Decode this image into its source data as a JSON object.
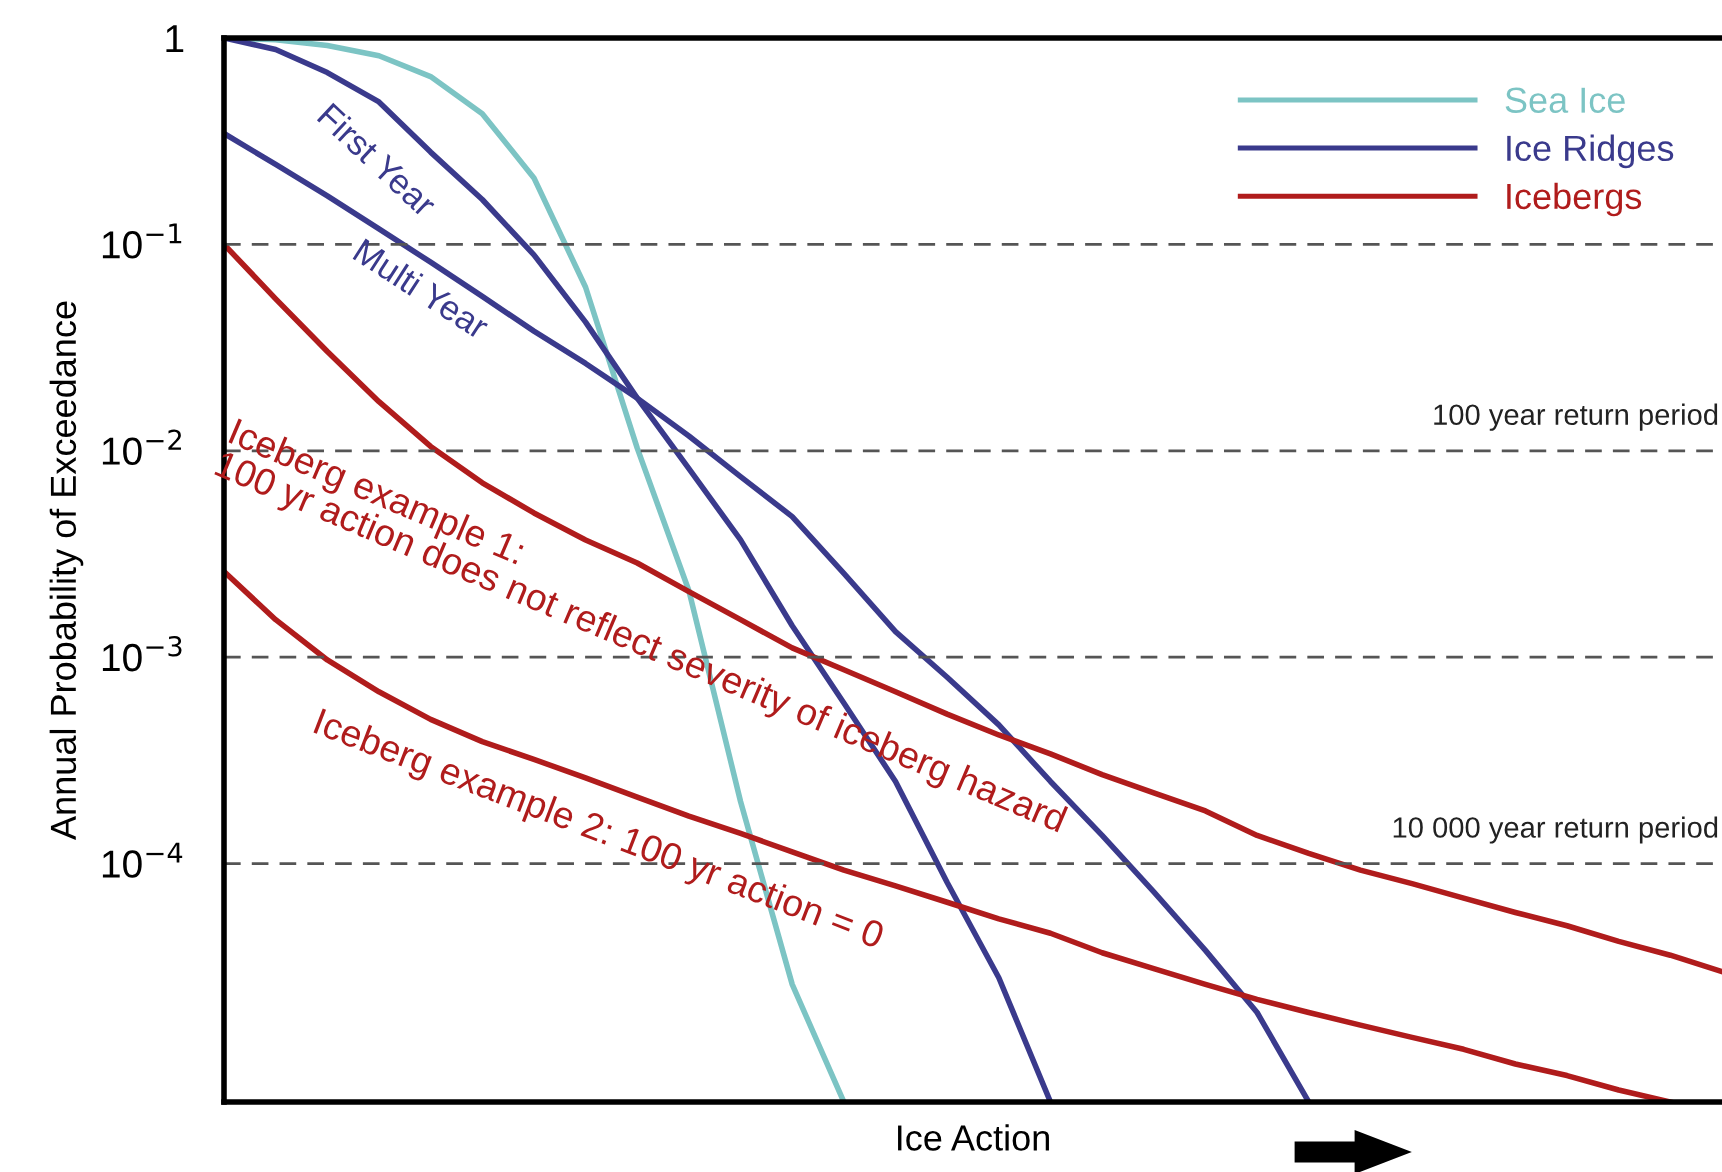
{
  "chart_data": {
    "type": "line",
    "xlabel": "Ice Action",
    "ylabel": "Annual Probability of Exceedance",
    "log": "y",
    "legend": "top right",
    "grid": false,
    "categories": [
      null,
      null,
      null,
      null,
      null,
      null,
      null,
      null,
      null,
      null,
      null,
      null,
      null,
      null,
      null,
      null,
      null,
      null,
      null,
      null,
      null,
      null,
      null,
      null,
      null,
      null,
      null,
      null,
      null,
      null
    ],
    "ylim": [
      7e-06,
      1
    ],
    "yticks": [
      1,
      {
        "value": 0.1,
        "label": "10$^{−1}$"
      },
      {
        "value": 0.01,
        "label": "10$^{−2}$"
      },
      {
        "value": 0.001,
        "label": "10$^{−3}$"
      },
      {
        "value": 0.0001,
        "label": "10$^{−4}$"
      }
    ],
    "series": [
      {
        "name": "Sea Ice",
        "color": "#7cc4c4",
        "values": [
          1,
          0.98,
          0.92,
          0.82,
          0.65,
          0.43,
          0.21,
          0.062,
          0.0103,
          0.0021,
          0.0002,
          2.6e-05,
          7e-06,
          null,
          null,
          null,
          null,
          null,
          null,
          null,
          null,
          null,
          null,
          null,
          null,
          null,
          null,
          null,
          null,
          null
        ]
      },
      {
        "name": "Ice Ridges",
        "color": "#3a3a8c",
        "values": [
          1,
          0.88,
          0.68,
          0.49,
          0.28,
          0.165,
          0.089,
          0.042,
          0.018,
          0.0082,
          0.0037,
          0.00142,
          0.0006,
          0.00025,
          8.1e-05,
          2.8e-05,
          7e-06,
          null,
          null,
          null,
          null,
          null,
          null,
          null,
          null,
          null,
          null,
          null,
          null,
          null
        ]
      },
      {
        "color": "#3a3a8c",
        "values": [
          0.345,
          0.244,
          0.172,
          0.119,
          0.082,
          0.056,
          0.038,
          0.0265,
          0.018,
          0.0118,
          0.0075,
          0.0048,
          0.00255,
          0.00133,
          0.0008,
          0.00047,
          0.00025,
          0.000137,
          7.3e-05,
          3.8e-05,
          1.9e-05,
          7e-06,
          null,
          null,
          null,
          null,
          null,
          null,
          null,
          null
        ]
      },
      {
        "name": "Icebergs",
        "color": "#b01c1c",
        "values": [
          0.1,
          0.0545,
          0.0303,
          0.0173,
          0.0105,
          0.007,
          0.005,
          0.0037,
          0.00286,
          0.00208,
          0.00152,
          0.00111,
          0.00087,
          0.00068,
          0.00053,
          0.00042,
          0.00034,
          0.00027,
          0.00022,
          0.00018,
          0.000137,
          0.000112,
          9.3e-05,
          8e-05,
          6.8e-05,
          5.8e-05,
          5e-05,
          4.2e-05,
          3.6e-05,
          3e-05
        ]
      },
      {
        "color": "#b01c1c",
        "values": [
          0.0026,
          0.00152,
          0.00097,
          0.00068,
          0.0005,
          0.00039,
          0.00032,
          0.00026,
          0.00021,
          0.00017,
          0.00014,
          0.000114,
          9.3e-05,
          7.8e-05,
          6.5e-05,
          5.4e-05,
          4.6e-05,
          3.7e-05,
          3.1e-05,
          2.6e-05,
          2.2e-05,
          1.9e-05,
          1.65e-05,
          1.44e-05,
          1.26e-05,
          1.07e-05,
          9.4e-06,
          8e-06,
          7e-06,
          null
        ]
      }
    ],
    "ref_lines": [
      {
        "axis": "y",
        "value": 0.1,
        "color": "#555555",
        "line_style": "dashed"
      },
      {
        "axis": "y",
        "value": 0.01,
        "label": "100 year return period",
        "color": "#555555",
        "line_style": "dashed"
      },
      {
        "axis": "y",
        "value": 0.001,
        "color": "#555555",
        "line_style": "dashed"
      },
      {
        "axis": "y",
        "value": 0.0001,
        "label": "10 000 year return period",
        "color": "#555555",
        "line_style": "dashed"
      }
    ],
    "annotations": [
      "First Year",
      "Multi Year",
      "Iceberg example 1:\n100 yr action does not reflect severity of iceberg hazard",
      "Iceberg example 2: 100 yr action = 0"
    ]
  }
}
